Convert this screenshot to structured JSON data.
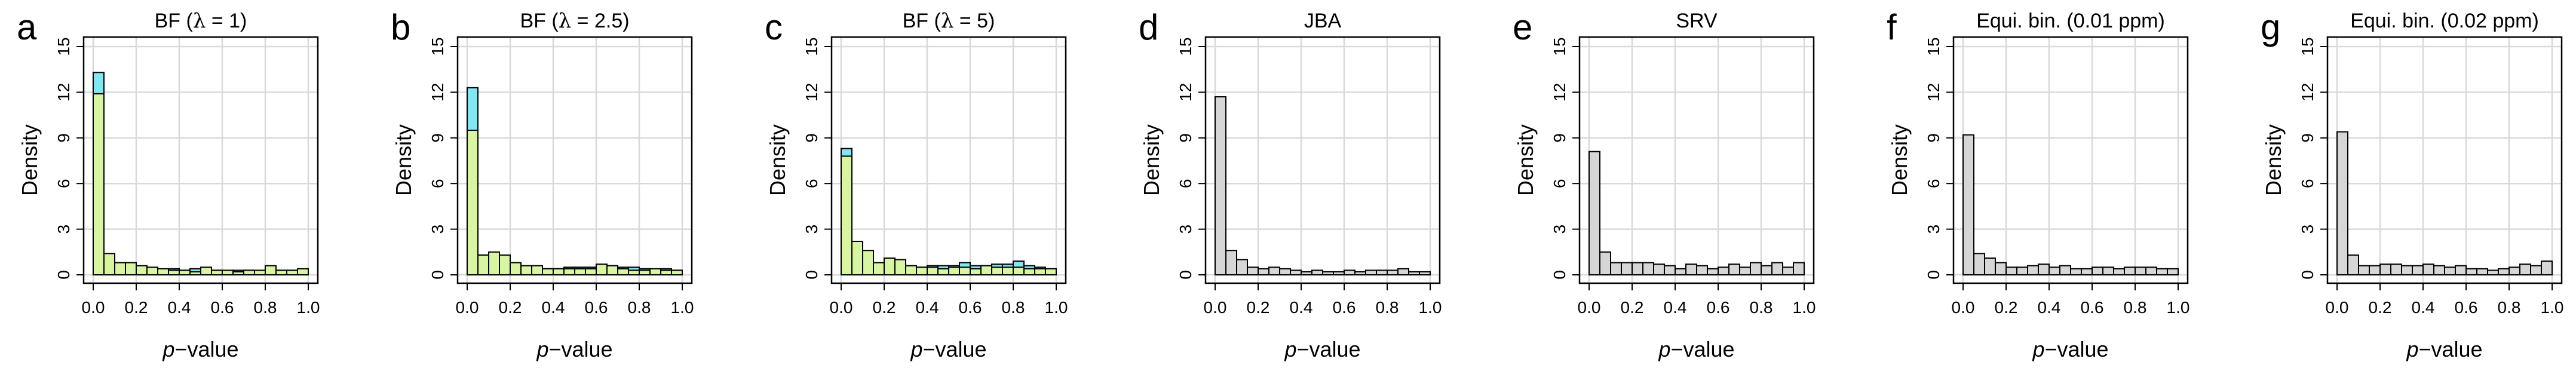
{
  "colors": {
    "bf_front": "#d8f5a2",
    "bf_back": "#7fe8f2",
    "gray": "#d6d6d6",
    "frame": "#000000",
    "grid": "#d9d9d9"
  },
  "chart_data": [
    {
      "type": "bar",
      "panel": "a",
      "title": {
        "pre": "BF (",
        "lambda": "λ",
        "post": " = 1)"
      },
      "xlabel": {
        "italic": "p",
        "rest": "−value"
      },
      "ylabel": "Density",
      "xlim": [
        0,
        1
      ],
      "ylim": [
        0,
        15
      ],
      "xticks": [
        "0.0",
        "0.2",
        "0.4",
        "0.6",
        "0.8",
        "1.0"
      ],
      "yticks": [
        "0",
        "3",
        "6",
        "9",
        "12",
        "15"
      ],
      "grid": true,
      "bin_width": 0.05,
      "series": [
        {
          "values": [
            13.3,
            1.3,
            0.7,
            0.6,
            0.5,
            0.4,
            0.3,
            0.4,
            0.3,
            0.4,
            0.3,
            0.3,
            0.2,
            0.3,
            0.3,
            0.2,
            0.5,
            0.3,
            0.3,
            0.3
          ],
          "color": "#7fe8f2"
        },
        {
          "values": [
            11.9,
            1.4,
            0.8,
            0.8,
            0.6,
            0.5,
            0.4,
            0.3,
            0.3,
            0.2,
            0.5,
            0.3,
            0.3,
            0.2,
            0.3,
            0.3,
            0.6,
            0.3,
            0.3,
            0.4
          ],
          "color": "#d8f5a2"
        }
      ]
    },
    {
      "type": "bar",
      "panel": "b",
      "title": {
        "pre": "BF (",
        "lambda": "λ",
        "post": " = 2.5)"
      },
      "xlabel": {
        "italic": "p",
        "rest": "−value"
      },
      "ylabel": "Density",
      "xlim": [
        0,
        1
      ],
      "ylim": [
        0,
        15
      ],
      "xticks": [
        "0.0",
        "0.2",
        "0.4",
        "0.6",
        "0.8",
        "1.0"
      ],
      "yticks": [
        "0",
        "3",
        "6",
        "9",
        "12",
        "15"
      ],
      "grid": true,
      "bin_width": 0.05,
      "series": [
        {
          "values": [
            12.3,
            1.3,
            1.1,
            0.8,
            0.6,
            0.5,
            0.4,
            0.4,
            0.4,
            0.5,
            0.5,
            0.5,
            0.4,
            0.6,
            0.5,
            0.5,
            0.4,
            0.3,
            0.4,
            0.3
          ],
          "color": "#7fe8f2"
        },
        {
          "values": [
            9.5,
            1.3,
            1.5,
            1.3,
            0.8,
            0.6,
            0.6,
            0.4,
            0.4,
            0.4,
            0.4,
            0.4,
            0.7,
            0.6,
            0.4,
            0.3,
            0.3,
            0.4,
            0.3,
            0.3
          ],
          "color": "#d8f5a2"
        }
      ]
    },
    {
      "type": "bar",
      "panel": "c",
      "title": {
        "pre": "BF (",
        "lambda": "λ",
        "post": " = 5)"
      },
      "xlabel": {
        "italic": "p",
        "rest": "−value"
      },
      "ylabel": "Density",
      "xlim": [
        0,
        1
      ],
      "ylim": [
        0,
        15
      ],
      "xticks": [
        "0.0",
        "0.2",
        "0.4",
        "0.6",
        "0.8",
        "1.0"
      ],
      "yticks": [
        "0",
        "3",
        "6",
        "9",
        "12",
        "15"
      ],
      "grid": true,
      "bin_width": 0.05,
      "series": [
        {
          "values": [
            8.3,
            1.2,
            0.8,
            0.7,
            0.8,
            0.7,
            0.6,
            0.5,
            0.6,
            0.6,
            0.6,
            0.8,
            0.6,
            0.6,
            0.7,
            0.7,
            0.9,
            0.6,
            0.5,
            0.4
          ],
          "color": "#7fe8f2"
        },
        {
          "values": [
            7.8,
            2.2,
            1.6,
            0.8,
            1.1,
            1.0,
            0.6,
            0.5,
            0.5,
            0.4,
            0.5,
            0.5,
            0.4,
            0.6,
            0.5,
            0.5,
            0.5,
            0.4,
            0.4,
            0.4
          ],
          "color": "#d8f5a2"
        }
      ]
    },
    {
      "type": "bar",
      "panel": "d",
      "title": {
        "pre": "JBA",
        "lambda": "",
        "post": ""
      },
      "xlabel": {
        "italic": "p",
        "rest": "−value"
      },
      "ylabel": "Density",
      "xlim": [
        0,
        1
      ],
      "ylim": [
        0,
        15
      ],
      "xticks": [
        "0.0",
        "0.2",
        "0.4",
        "0.6",
        "0.8",
        "1.0"
      ],
      "yticks": [
        "0",
        "3",
        "6",
        "9",
        "12",
        "15"
      ],
      "grid": true,
      "bin_width": 0.05,
      "series": [
        {
          "values": [
            11.7,
            1.6,
            1.0,
            0.5,
            0.4,
            0.5,
            0.4,
            0.3,
            0.2,
            0.3,
            0.2,
            0.2,
            0.3,
            0.2,
            0.3,
            0.3,
            0.3,
            0.4,
            0.2,
            0.2
          ],
          "color": "#d6d6d6"
        }
      ]
    },
    {
      "type": "bar",
      "panel": "e",
      "title": {
        "pre": "SRV",
        "lambda": "",
        "post": ""
      },
      "xlabel": {
        "italic": "p",
        "rest": "−value"
      },
      "ylabel": "Density",
      "xlim": [
        0,
        1
      ],
      "ylim": [
        0,
        15
      ],
      "xticks": [
        "0.0",
        "0.2",
        "0.4",
        "0.6",
        "0.8",
        "1.0"
      ],
      "yticks": [
        "0",
        "3",
        "6",
        "9",
        "12",
        "15"
      ],
      "grid": true,
      "bin_width": 0.05,
      "series": [
        {
          "values": [
            8.1,
            1.5,
            0.8,
            0.8,
            0.8,
            0.8,
            0.7,
            0.6,
            0.4,
            0.7,
            0.6,
            0.4,
            0.5,
            0.7,
            0.5,
            0.8,
            0.6,
            0.8,
            0.5,
            0.8
          ],
          "color": "#d6d6d6"
        }
      ]
    },
    {
      "type": "bar",
      "panel": "f",
      "title": {
        "pre": "Equi. bin. (0.01 ppm)",
        "lambda": "",
        "post": ""
      },
      "xlabel": {
        "italic": "p",
        "rest": "−value"
      },
      "ylabel": "Density",
      "xlim": [
        0,
        1
      ],
      "ylim": [
        0,
        15
      ],
      "xticks": [
        "0.0",
        "0.2",
        "0.4",
        "0.6",
        "0.8",
        "1.0"
      ],
      "yticks": [
        "0",
        "3",
        "6",
        "9",
        "12",
        "15"
      ],
      "grid": true,
      "bin_width": 0.05,
      "series": [
        {
          "values": [
            9.2,
            1.4,
            1.1,
            0.8,
            0.5,
            0.5,
            0.6,
            0.7,
            0.5,
            0.6,
            0.4,
            0.4,
            0.5,
            0.5,
            0.4,
            0.5,
            0.5,
            0.5,
            0.4,
            0.4
          ],
          "color": "#d6d6d6"
        }
      ]
    },
    {
      "type": "bar",
      "panel": "g",
      "title": {
        "pre": "Equi. bin. (0.02 ppm)",
        "lambda": "",
        "post": ""
      },
      "xlabel": {
        "italic": "p",
        "rest": "−value"
      },
      "ylabel": "Density",
      "xlim": [
        0,
        1
      ],
      "ylim": [
        0,
        15
      ],
      "xticks": [
        "0.0",
        "0.2",
        "0.4",
        "0.6",
        "0.8",
        "1.0"
      ],
      "yticks": [
        "0",
        "3",
        "6",
        "9",
        "12",
        "15"
      ],
      "grid": true,
      "bin_width": 0.05,
      "series": [
        {
          "values": [
            9.4,
            1.3,
            0.6,
            0.6,
            0.7,
            0.7,
            0.6,
            0.6,
            0.7,
            0.6,
            0.5,
            0.6,
            0.4,
            0.4,
            0.3,
            0.4,
            0.5,
            0.7,
            0.6,
            0.9
          ],
          "color": "#d6d6d6"
        }
      ]
    }
  ]
}
